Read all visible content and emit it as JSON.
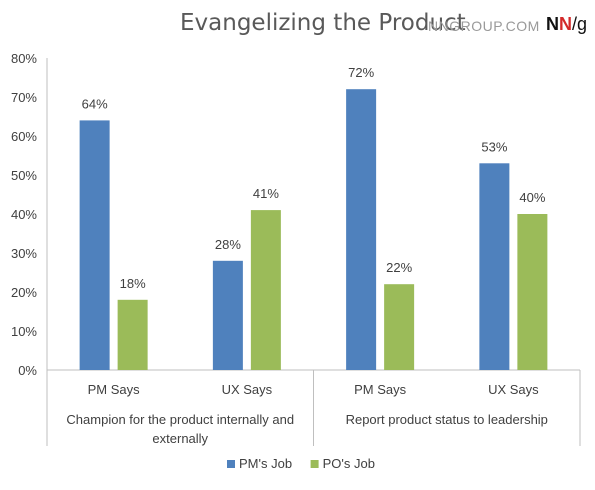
{
  "header": {
    "title": "Evangelizing the Product",
    "source": "NNGROUP.COM",
    "logo": {
      "n1": "N",
      "n2": "N",
      "slash": "/",
      "g": "g"
    }
  },
  "chart_data": {
    "type": "bar",
    "title": "Evangelizing the Product",
    "xlabel": "",
    "ylabel": "",
    "ylim": [
      0,
      80
    ],
    "yticks": [
      "0%",
      "10%",
      "20%",
      "30%",
      "40%",
      "50%",
      "60%",
      "70%",
      "80%"
    ],
    "categories": [
      "PM Says",
      "UX Says",
      "PM Says",
      "UX Says"
    ],
    "groups": [
      {
        "label_lines": [
          "Champion for the product internally and",
          "externally"
        ]
      },
      {
        "label_lines": [
          "Report product status to leadership"
        ]
      }
    ],
    "series": [
      {
        "name": "PM's Job",
        "color": "#4f81bd",
        "values": [
          64,
          28,
          72,
          53
        ],
        "labels": [
          "64%",
          "28%",
          "72%",
          "53%"
        ]
      },
      {
        "name": "PO's Job",
        "color": "#9bbb59",
        "values": [
          18,
          41,
          22,
          40
        ],
        "labels": [
          "18%",
          "41%",
          "22%",
          "40%"
        ]
      }
    ],
    "grid": false,
    "legend": "bottom"
  }
}
